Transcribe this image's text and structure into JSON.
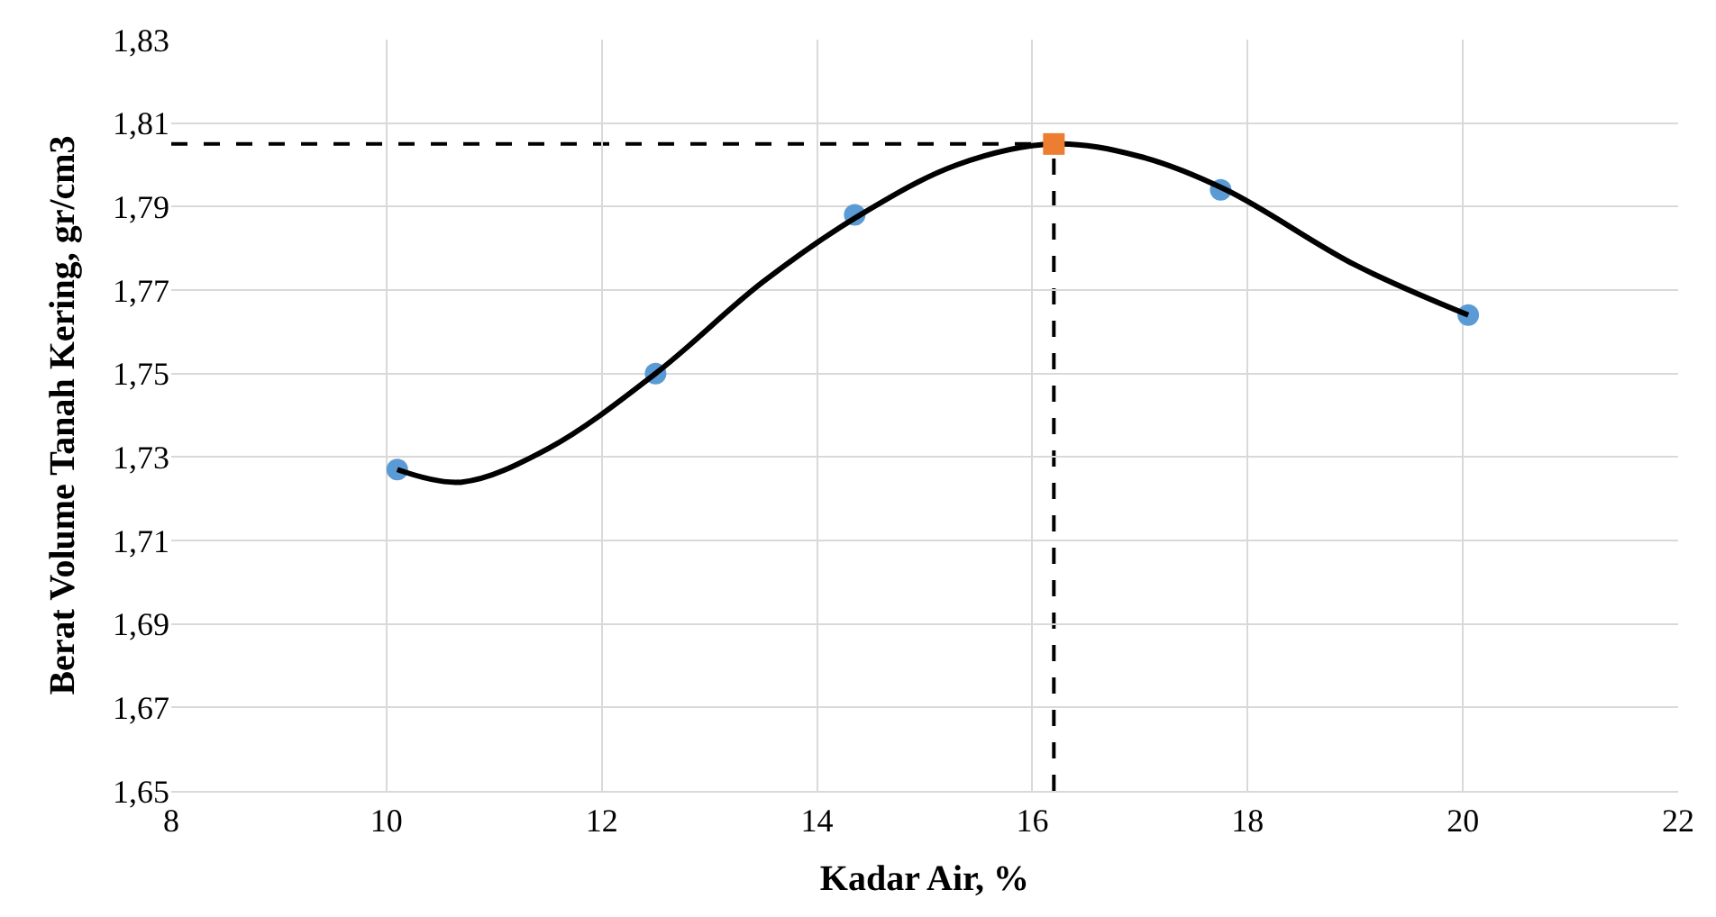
{
  "chart_data": {
    "type": "scatter",
    "xlabel": "Kadar Air, %",
    "ylabel": "Berat Volume Tanah Kering, gr/cm3",
    "series": [
      {
        "color": "#5b9bd5",
        "marker": "circle",
        "x": [
          10.1,
          12.5,
          14.35,
          17.75,
          20.05
        ],
        "values": [
          1.727,
          1.75,
          1.788,
          1.794,
          1.764
        ]
      },
      {
        "type": "line",
        "color": "#000000",
        "marker": "none",
        "line_style": "solid",
        "x": [
          10.1,
          10.7,
          11.5,
          12.5,
          13.5,
          14.4,
          15.3,
          16.2,
          17.0,
          17.8,
          19.0,
          20.05
        ],
        "values": [
          1.727,
          1.724,
          1.732,
          1.75,
          1.772,
          1.788,
          1.8,
          1.805,
          1.802,
          1.794,
          1.776,
          1.764
        ]
      },
      {
        "color": "#ed7d31",
        "marker": "square",
        "x": [
          16.2
        ],
        "values": [
          1.805
        ]
      }
    ],
    "ref_lines": [
      {
        "axis": "y",
        "value": 1.805,
        "color": "#000000",
        "line_style": "dashed"
      },
      {
        "axis": "x",
        "value": 16.2,
        "color": "#000000",
        "line_style": "dashed"
      }
    ],
    "xlim": [
      8,
      22
    ],
    "xticks": [
      8,
      10,
      12,
      14,
      16,
      18,
      20,
      22
    ],
    "ylim": [
      1.65,
      1.83
    ],
    "yticks": [
      {
        "value": 1.65,
        "label": "1,65"
      },
      {
        "value": 1.67,
        "label": "1,67"
      },
      {
        "value": 1.69,
        "label": "1,69"
      },
      {
        "value": 1.71,
        "label": "1,71"
      },
      {
        "value": 1.73,
        "label": "1,73"
      },
      {
        "value": 1.75,
        "label": "1,75"
      },
      {
        "value": 1.77,
        "label": "1,77"
      },
      {
        "value": 1.79,
        "label": "1,79"
      },
      {
        "value": 1.81,
        "label": "1,81"
      },
      {
        "value": 1.83,
        "label": "1,83"
      }
    ],
    "grid": true,
    "legend": false
  }
}
